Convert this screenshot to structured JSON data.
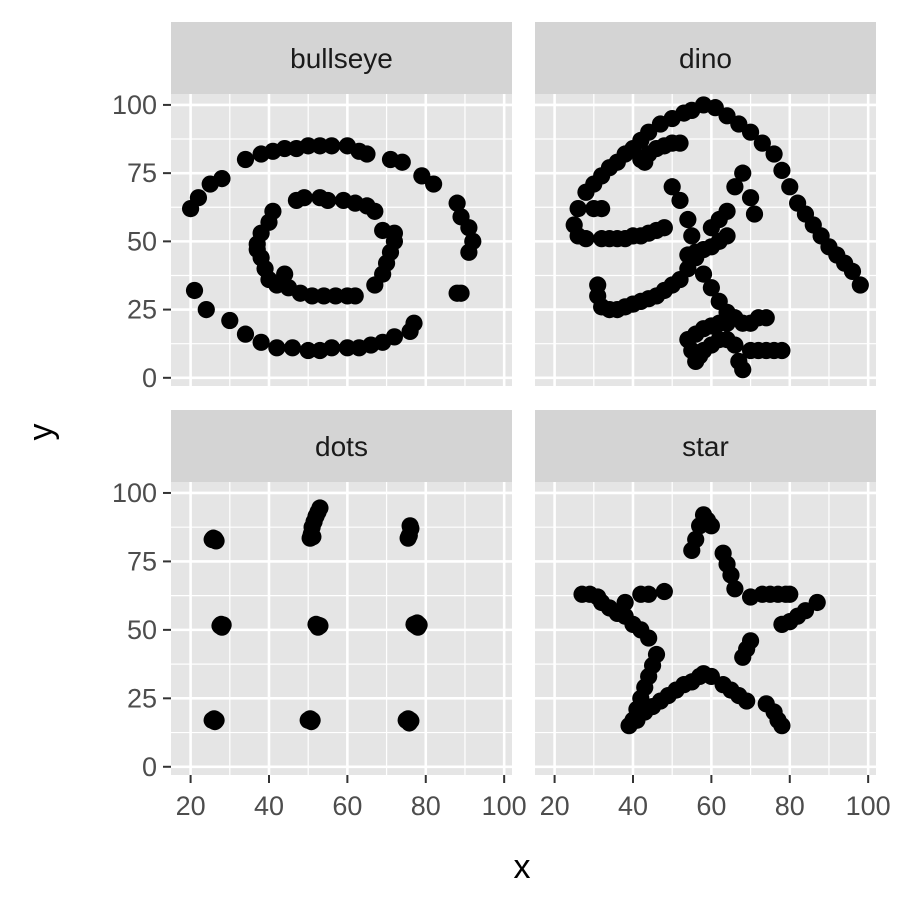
{
  "chart_data": {
    "type": "scatter",
    "layout": "facet-grid-2x2",
    "xlabel": "x",
    "ylabel": "y",
    "xlim": [
      15,
      102
    ],
    "ylim": [
      -3,
      104
    ],
    "xticks": [
      "20",
      "40",
      "60",
      "80",
      "100"
    ],
    "yticks": [
      "0",
      "25",
      "50",
      "75",
      "100"
    ],
    "xtick_values": [
      20,
      40,
      60,
      80,
      100
    ],
    "ytick_values": [
      0,
      25,
      50,
      75,
      100
    ],
    "panel_background": "#e5e5e5",
    "strip_background": "#d4d4d4",
    "grid_color": "#ffffff",
    "point_color": "#000000",
    "panels": [
      {
        "name": "bullseye",
        "points": [
          [
            20,
            62
          ],
          [
            22,
            66
          ],
          [
            25,
            71
          ],
          [
            28,
            73
          ],
          [
            34,
            80
          ],
          [
            38,
            82
          ],
          [
            41,
            83
          ],
          [
            44,
            84
          ],
          [
            47,
            84
          ],
          [
            50,
            85
          ],
          [
            53,
            85
          ],
          [
            56,
            85
          ],
          [
            60,
            85
          ],
          [
            63,
            83
          ],
          [
            65,
            82
          ],
          [
            71,
            80
          ],
          [
            74,
            79
          ],
          [
            79,
            74
          ],
          [
            82,
            71
          ],
          [
            88,
            64
          ],
          [
            89,
            59
          ],
          [
            91,
            55
          ],
          [
            92,
            50
          ],
          [
            91,
            46
          ],
          [
            21,
            32
          ],
          [
            24,
            25
          ],
          [
            30,
            21
          ],
          [
            34,
            16
          ],
          [
            38,
            13
          ],
          [
            42,
            11
          ],
          [
            46,
            11
          ],
          [
            50,
            10
          ],
          [
            53,
            10
          ],
          [
            56,
            11
          ],
          [
            60,
            11
          ],
          [
            63,
            11
          ],
          [
            66,
            12
          ],
          [
            69,
            13
          ],
          [
            72,
            15
          ],
          [
            76,
            17
          ],
          [
            77,
            20
          ],
          [
            88,
            31
          ],
          [
            89,
            31
          ],
          [
            37,
            49
          ],
          [
            38,
            53
          ],
          [
            40,
            57
          ],
          [
            41,
            61
          ],
          [
            38,
            44
          ],
          [
            39,
            40
          ],
          [
            40,
            36
          ],
          [
            42,
            34
          ],
          [
            45,
            33
          ],
          [
            48,
            31
          ],
          [
            51,
            30
          ],
          [
            54,
            30
          ],
          [
            57,
            30
          ],
          [
            60,
            30
          ],
          [
            62,
            30
          ],
          [
            67,
            34
          ],
          [
            69,
            38
          ],
          [
            70,
            42
          ],
          [
            71,
            46
          ],
          [
            72,
            50
          ],
          [
            72,
            53
          ],
          [
            69,
            54
          ],
          [
            67,
            61
          ],
          [
            65,
            63
          ],
          [
            62,
            64
          ],
          [
            59,
            65
          ],
          [
            55,
            65
          ],
          [
            53,
            66
          ],
          [
            49,
            66
          ],
          [
            47,
            65
          ],
          [
            44,
            38
          ],
          [
            37,
            47
          ]
        ]
      },
      {
        "name": "dino",
        "points": [
          [
            55,
            98
          ],
          [
            58,
            100
          ],
          [
            61,
            99
          ],
          [
            64,
            96
          ],
          [
            67,
            93
          ],
          [
            70,
            90
          ],
          [
            73,
            86
          ],
          [
            76,
            82
          ],
          [
            78,
            76
          ],
          [
            80,
            70
          ],
          [
            82,
            64
          ],
          [
            84,
            60
          ],
          [
            86,
            56
          ],
          [
            88,
            52
          ],
          [
            90,
            48
          ],
          [
            92,
            45
          ],
          [
            94,
            42
          ],
          [
            96,
            39
          ],
          [
            98,
            34
          ],
          [
            53,
            97
          ],
          [
            50,
            95
          ],
          [
            47,
            93
          ],
          [
            44,
            90
          ],
          [
            42,
            87
          ],
          [
            40,
            84
          ],
          [
            38,
            82
          ],
          [
            36,
            79
          ],
          [
            34,
            77
          ],
          [
            32,
            74
          ],
          [
            30,
            71
          ],
          [
            28,
            68
          ],
          [
            26,
            62
          ],
          [
            25,
            56
          ],
          [
            26,
            52
          ],
          [
            28,
            51
          ],
          [
            30,
            62
          ],
          [
            32,
            62
          ],
          [
            42,
            80
          ],
          [
            44,
            82
          ],
          [
            46,
            84
          ],
          [
            48,
            85
          ],
          [
            50,
            86
          ],
          [
            52,
            86
          ],
          [
            43,
            79
          ],
          [
            32,
            51
          ],
          [
            34,
            51
          ],
          [
            36,
            51
          ],
          [
            38,
            51
          ],
          [
            40,
            52
          ],
          [
            42,
            52
          ],
          [
            44,
            53
          ],
          [
            46,
            54
          ],
          [
            48,
            55
          ],
          [
            50,
            70
          ],
          [
            52,
            65
          ],
          [
            54,
            58
          ],
          [
            55,
            52
          ],
          [
            56,
            44
          ],
          [
            54,
            40
          ],
          [
            52,
            36
          ],
          [
            50,
            34
          ],
          [
            48,
            32
          ],
          [
            46,
            30
          ],
          [
            44,
            29
          ],
          [
            42,
            28
          ],
          [
            40,
            27
          ],
          [
            38,
            26
          ],
          [
            36,
            25
          ],
          [
            34,
            25
          ],
          [
            32,
            26
          ],
          [
            31,
            30
          ],
          [
            31,
            34
          ],
          [
            54,
            45
          ],
          [
            56,
            46
          ],
          [
            58,
            47
          ],
          [
            60,
            48
          ],
          [
            62,
            50
          ],
          [
            64,
            52
          ],
          [
            60,
            55
          ],
          [
            62,
            58
          ],
          [
            64,
            61
          ],
          [
            66,
            70
          ],
          [
            68,
            75
          ],
          [
            70,
            66
          ],
          [
            71,
            60
          ],
          [
            58,
            38
          ],
          [
            60,
            33
          ],
          [
            62,
            28
          ],
          [
            64,
            24
          ],
          [
            66,
            22
          ],
          [
            68,
            20
          ],
          [
            70,
            20
          ],
          [
            72,
            22
          ],
          [
            74,
            22
          ],
          [
            55,
            10
          ],
          [
            56,
            6
          ],
          [
            57,
            8
          ],
          [
            58,
            10
          ],
          [
            60,
            12
          ],
          [
            62,
            14
          ],
          [
            64,
            14
          ],
          [
            66,
            12
          ],
          [
            67,
            6
          ],
          [
            68,
            3
          ],
          [
            70,
            10
          ],
          [
            72,
            10
          ],
          [
            74,
            10
          ],
          [
            76,
            10
          ],
          [
            78,
            10
          ],
          [
            54,
            14
          ],
          [
            56,
            16
          ],
          [
            58,
            18
          ],
          [
            60,
            19
          ],
          [
            62,
            20
          ],
          [
            64,
            20
          ]
        ]
      },
      {
        "name": "dots",
        "points": [
          [
            25.5,
            83.0
          ],
          [
            26.5,
            82.5
          ],
          [
            25.8,
            83.5
          ],
          [
            26.2,
            83.2
          ],
          [
            50.5,
            83.5
          ],
          [
            50.8,
            85.0
          ],
          [
            51.0,
            87.5
          ],
          [
            51.5,
            89.5
          ],
          [
            52.0,
            91.5
          ],
          [
            52.5,
            93.0
          ],
          [
            53.0,
            94.5
          ],
          [
            51.2,
            84.0
          ],
          [
            75.5,
            83.5
          ],
          [
            76.0,
            88.0
          ],
          [
            75.8,
            84.5
          ],
          [
            76.2,
            87.0
          ],
          [
            27.5,
            51.5
          ],
          [
            28.0,
            51.0
          ],
          [
            28.3,
            51.8
          ],
          [
            27.8,
            52.0
          ],
          [
            52.0,
            52.0
          ],
          [
            52.5,
            51.0
          ],
          [
            53.0,
            51.5
          ],
          [
            52.3,
            51.8
          ],
          [
            77.0,
            52.0
          ],
          [
            77.5,
            51.5
          ],
          [
            78.0,
            51.0
          ],
          [
            78.3,
            51.8
          ],
          [
            77.8,
            52.5
          ],
          [
            25.5,
            17.0
          ],
          [
            26.0,
            17.5
          ],
          [
            26.5,
            17.0
          ],
          [
            26.2,
            16.5
          ],
          [
            50.0,
            17.0
          ],
          [
            50.5,
            17.5
          ],
          [
            51.0,
            17.0
          ],
          [
            50.8,
            16.5
          ],
          [
            75.0,
            17.0
          ],
          [
            75.5,
            17.5
          ],
          [
            76.0,
            17.0
          ],
          [
            75.8,
            16.0
          ],
          [
            76.2,
            16.8
          ]
        ]
      },
      {
        "name": "star",
        "points": [
          [
            27,
            63
          ],
          [
            29,
            63
          ],
          [
            31,
            62
          ],
          [
            32,
            60
          ],
          [
            34,
            58
          ],
          [
            36,
            56
          ],
          [
            38,
            55
          ],
          [
            40,
            52
          ],
          [
            42,
            50
          ],
          [
            44,
            47
          ],
          [
            46,
            41
          ],
          [
            45,
            37
          ],
          [
            44,
            33
          ],
          [
            43,
            29
          ],
          [
            42,
            25
          ],
          [
            41,
            21
          ],
          [
            40,
            17
          ],
          [
            39,
            15
          ],
          [
            41,
            17
          ],
          [
            43,
            20
          ],
          [
            45,
            22
          ],
          [
            47,
            24
          ],
          [
            49,
            26
          ],
          [
            51,
            28
          ],
          [
            53,
            30
          ],
          [
            55,
            31
          ],
          [
            57,
            33
          ],
          [
            58,
            34
          ],
          [
            60,
            33
          ],
          [
            63,
            30
          ],
          [
            65,
            28
          ],
          [
            67,
            26
          ],
          [
            69,
            24
          ],
          [
            68,
            40
          ],
          [
            69,
            43
          ],
          [
            70,
            46
          ],
          [
            70,
            62
          ],
          [
            73,
            63
          ],
          [
            75,
            63
          ],
          [
            77,
            63
          ],
          [
            79,
            63
          ],
          [
            80,
            63
          ],
          [
            87,
            60
          ],
          [
            84,
            57
          ],
          [
            82,
            55
          ],
          [
            80,
            53
          ],
          [
            78,
            52
          ],
          [
            74,
            23
          ],
          [
            76,
            20
          ],
          [
            77,
            17
          ],
          [
            78,
            15
          ],
          [
            66,
            65
          ],
          [
            65,
            70
          ],
          [
            64,
            74
          ],
          [
            63,
            78
          ],
          [
            60,
            88
          ],
          [
            59,
            90
          ],
          [
            58,
            92
          ],
          [
            57,
            88
          ],
          [
            56,
            83
          ],
          [
            55,
            79
          ],
          [
            48,
            64
          ],
          [
            42,
            63
          ],
          [
            38,
            60
          ],
          [
            44,
            63
          ]
        ]
      }
    ]
  }
}
